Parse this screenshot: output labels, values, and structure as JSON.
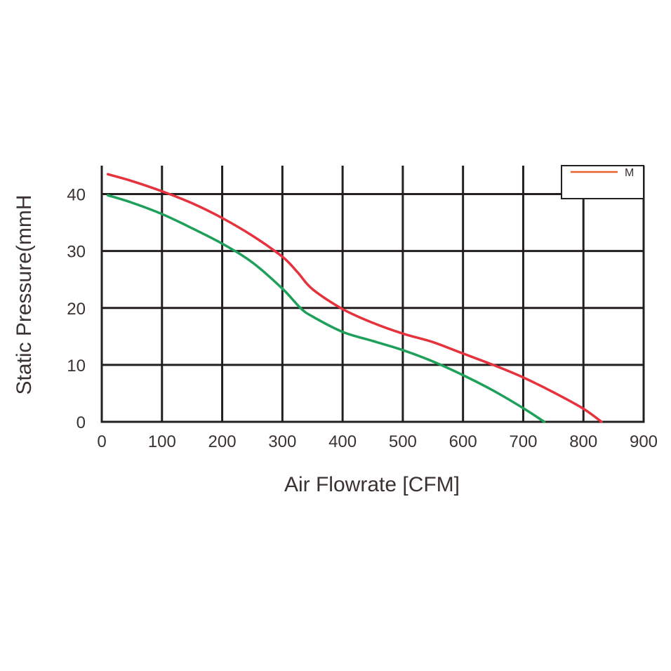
{
  "chart_data": {
    "type": "line",
    "title": "",
    "xlabel": "Air  Flowrate   [CFM]",
    "ylabel": "Static Pressure(mmH",
    "xlim": [
      0,
      900
    ],
    "ylim": [
      0,
      45
    ],
    "x_ticks": [
      "0",
      "100",
      "200",
      "300",
      "400",
      "500",
      "600",
      "700",
      "800",
      "900"
    ],
    "y_ticks": [
      "0",
      "10",
      "20",
      "30",
      "40"
    ],
    "grid": true,
    "legend_position": "top-right",
    "series": [
      {
        "name": "M",
        "color": "#e5323c",
        "x": [
          10,
          50,
          100,
          150,
          200,
          250,
          300,
          325,
          350,
          400,
          450,
          500,
          550,
          600,
          650,
          700,
          750,
          800,
          830
        ],
        "y": [
          43.5,
          42.3,
          40.5,
          38.4,
          35.8,
          32.7,
          29.0,
          26.3,
          23.3,
          19.8,
          17.4,
          15.5,
          14.0,
          12.0,
          10.0,
          7.8,
          5.2,
          2.3,
          0
        ]
      },
      {
        "name": "",
        "color": "#1ea05a",
        "x": [
          10,
          50,
          100,
          150,
          200,
          250,
          300,
          330,
          350,
          400,
          450,
          500,
          550,
          600,
          650,
          700,
          735
        ],
        "y": [
          39.8,
          38.5,
          36.5,
          34.0,
          31.3,
          28.0,
          23.4,
          20.0,
          18.5,
          15.8,
          14.2,
          12.6,
          10.6,
          8.2,
          5.5,
          2.4,
          0
        ]
      }
    ]
  }
}
